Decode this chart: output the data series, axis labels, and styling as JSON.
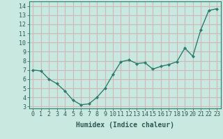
{
  "x": [
    0,
    1,
    2,
    3,
    4,
    5,
    6,
    7,
    8,
    9,
    10,
    11,
    12,
    13,
    14,
    15,
    16,
    17,
    18,
    19,
    20,
    21,
    22,
    23
  ],
  "y": [
    7.0,
    6.9,
    6.0,
    5.5,
    4.7,
    3.7,
    3.2,
    3.3,
    4.0,
    5.0,
    6.5,
    7.9,
    8.1,
    7.7,
    7.8,
    7.1,
    7.4,
    7.6,
    7.9,
    9.4,
    8.5,
    11.4,
    13.5,
    13.7
  ],
  "line_color": "#2d7d6e",
  "marker": "D",
  "marker_size": 2.0,
  "bg_color": "#c8e8e0",
  "grid_color": "#d0b8b8",
  "xlabel": "Humidex (Indice chaleur)",
  "xlabel_fontsize": 7,
  "tick_fontsize": 6,
  "xlim": [
    -0.5,
    23.5
  ],
  "ylim": [
    2.8,
    14.5
  ],
  "yticks": [
    3,
    4,
    5,
    6,
    7,
    8,
    9,
    10,
    11,
    12,
    13,
    14
  ],
  "xticks": [
    0,
    1,
    2,
    3,
    4,
    5,
    6,
    7,
    8,
    9,
    10,
    11,
    12,
    13,
    14,
    15,
    16,
    17,
    18,
    19,
    20,
    21,
    22,
    23
  ],
  "line_width": 1.0
}
